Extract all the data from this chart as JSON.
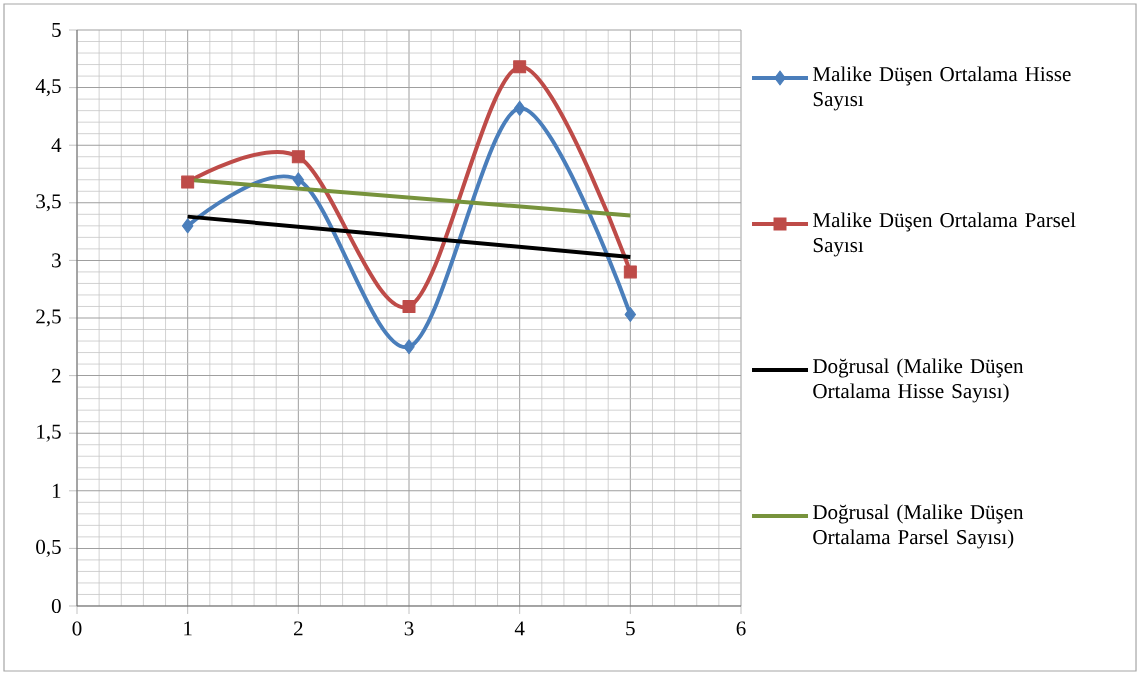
{
  "chart_data": {
    "type": "line",
    "xlim": [
      0,
      6
    ],
    "ylim": [
      0,
      5
    ],
    "xticks": [
      0,
      1,
      2,
      3,
      4,
      5,
      6
    ],
    "yticks": [
      0,
      {
        "value": 0.5,
        "label": "0,5"
      },
      1,
      {
        "value": 1.5,
        "label": "1,5"
      },
      2,
      {
        "value": 2.5,
        "label": "2,5"
      },
      3,
      {
        "value": 3.5,
        "label": "3,5"
      },
      4,
      {
        "value": 4.5,
        "label": "4,5"
      },
      5
    ],
    "grid": true,
    "legend": "right",
    "series": [
      {
        "name": "Malike Düşen Ortalama Hisse Sayısı",
        "color": "#4a7ebb",
        "marker": "diamond",
        "x": [
          1,
          2,
          3,
          4,
          5
        ],
        "values": [
          3.3,
          3.7,
          2.25,
          4.32,
          2.53
        ]
      },
      {
        "name": "Malike Düşen Ortalama Parsel Sayısı",
        "color": "#be4b48",
        "marker": "square",
        "x": [
          1,
          2,
          3,
          4,
          5
        ],
        "values": [
          3.68,
          3.9,
          2.6,
          4.68,
          2.9
        ]
      },
      {
        "name": "Doğrusal (Malike Düşen Ortalama Hisse Sayısı)",
        "color": "#000000",
        "marker": "none",
        "x": [
          1,
          5
        ],
        "values": [
          3.38,
          3.03
        ]
      },
      {
        "name": "Doğrusal (Malike Düşen Ortalama Parsel Sayısı)",
        "color": "#77933c",
        "marker": "none",
        "x": [
          1,
          5
        ],
        "values": [
          3.7,
          3.39
        ]
      }
    ]
  }
}
